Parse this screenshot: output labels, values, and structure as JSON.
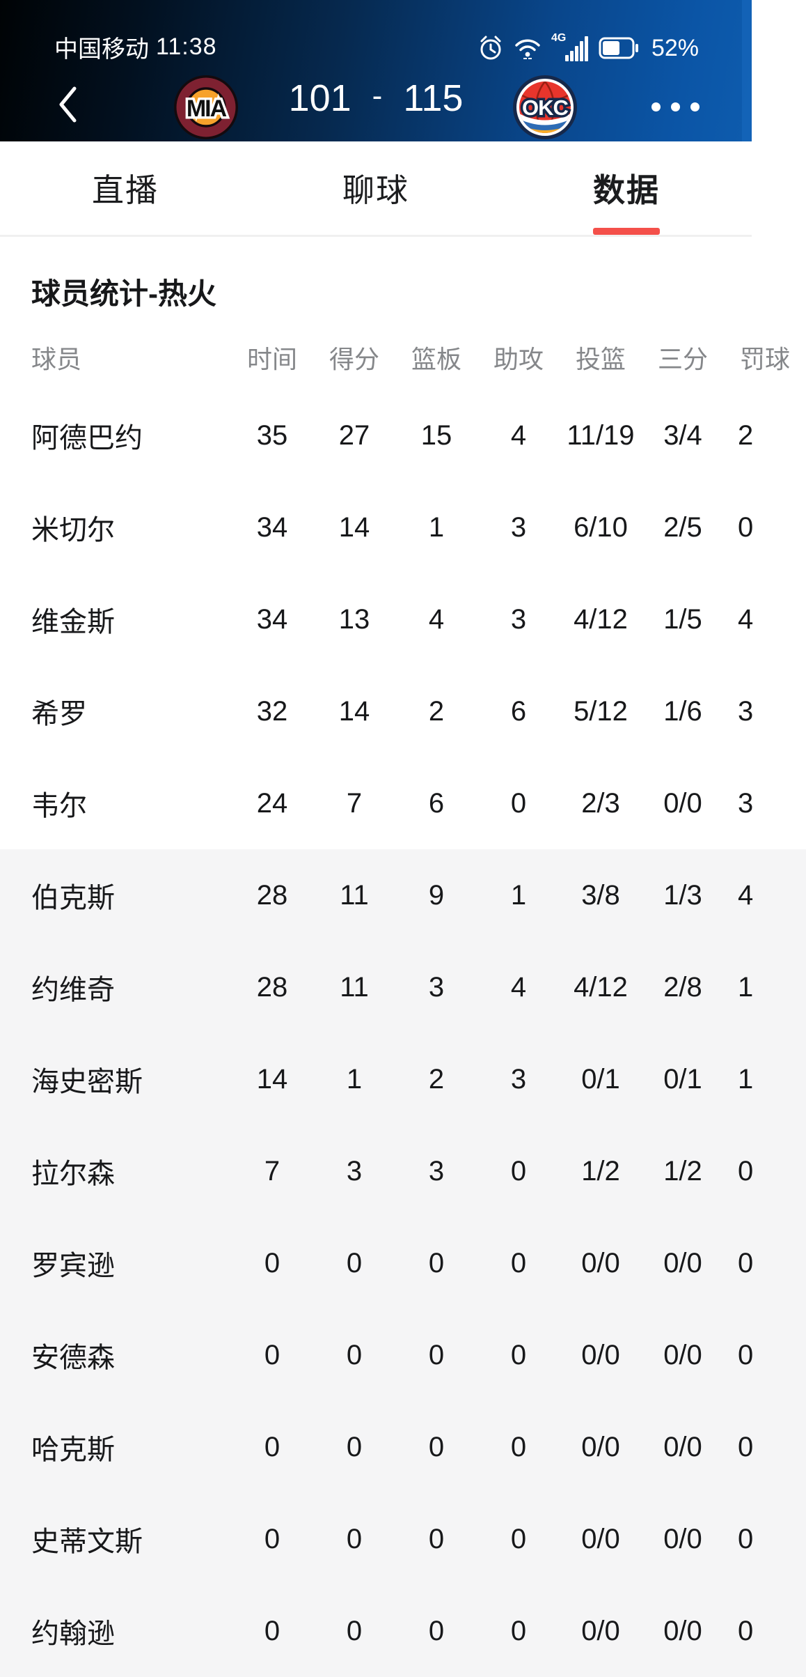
{
  "status_bar": {
    "carrier": "中国移动",
    "time": "11:38",
    "network": "4G",
    "battery_percent": "52%",
    "icons": [
      "alarm-icon",
      "wifi-icon",
      "signal-bars-icon",
      "battery-icon"
    ]
  },
  "nav": {
    "home_team_abbr": "MIA",
    "away_team_abbr": "OKC",
    "home_score": "101",
    "score_separator": "-",
    "away_score": "115",
    "back_icon": "chevron-left-icon",
    "more_icon": "ellipsis-icon"
  },
  "tabs": [
    {
      "label": "直播",
      "active": false
    },
    {
      "label": "聊球",
      "active": false
    },
    {
      "label": "数据",
      "active": true
    }
  ],
  "section": {
    "title": "球员统计-热火"
  },
  "table": {
    "columns": [
      "球员",
      "时间",
      "得分",
      "篮板",
      "助攻",
      "投篮",
      "三分",
      "罚球"
    ],
    "rows": [
      {
        "name": "阿德巴约",
        "stats": [
          "35",
          "27",
          "15",
          "4",
          "11/19",
          "3/4"
        ],
        "ft_visible": "2",
        "bench": false
      },
      {
        "name": "米切尔",
        "stats": [
          "34",
          "14",
          "1",
          "3",
          "6/10",
          "2/5"
        ],
        "ft_visible": "0",
        "bench": false
      },
      {
        "name": "维金斯",
        "stats": [
          "34",
          "13",
          "4",
          "3",
          "4/12",
          "1/5"
        ],
        "ft_visible": "4",
        "bench": false
      },
      {
        "name": "希罗",
        "stats": [
          "32",
          "14",
          "2",
          "6",
          "5/12",
          "1/6"
        ],
        "ft_visible": "3",
        "bench": false
      },
      {
        "name": "韦尔",
        "stats": [
          "24",
          "7",
          "6",
          "0",
          "2/3",
          "0/0"
        ],
        "ft_visible": "3",
        "bench": false
      },
      {
        "name": "伯克斯",
        "stats": [
          "28",
          "11",
          "9",
          "1",
          "3/8",
          "1/3"
        ],
        "ft_visible": "4",
        "bench": true
      },
      {
        "name": "约维奇",
        "stats": [
          "28",
          "11",
          "3",
          "4",
          "4/12",
          "2/8"
        ],
        "ft_visible": "1",
        "bench": true
      },
      {
        "name": "海史密斯",
        "stats": [
          "14",
          "1",
          "2",
          "3",
          "0/1",
          "0/1"
        ],
        "ft_visible": "1",
        "bench": true
      },
      {
        "name": "拉尔森",
        "stats": [
          "7",
          "3",
          "3",
          "0",
          "1/2",
          "1/2"
        ],
        "ft_visible": "0",
        "bench": true
      },
      {
        "name": "罗宾逊",
        "stats": [
          "0",
          "0",
          "0",
          "0",
          "0/0",
          "0/0"
        ],
        "ft_visible": "0",
        "bench": true
      },
      {
        "name": "安德森",
        "stats": [
          "0",
          "0",
          "0",
          "0",
          "0/0",
          "0/0"
        ],
        "ft_visible": "0",
        "bench": true
      },
      {
        "name": "哈克斯",
        "stats": [
          "0",
          "0",
          "0",
          "0",
          "0/0",
          "0/0"
        ],
        "ft_visible": "0",
        "bench": true
      },
      {
        "name": "史蒂文斯",
        "stats": [
          "0",
          "0",
          "0",
          "0",
          "0/0",
          "0/0"
        ],
        "ft_visible": "0",
        "bench": true
      },
      {
        "name": "约翰逊",
        "stats": [
          "0",
          "0",
          "0",
          "0",
          "0/0",
          "0/0"
        ],
        "ft_visible": "0",
        "bench": true
      }
    ]
  },
  "colors": {
    "accent_underline": "#f4504a",
    "bench_row_bg": "#f5f5f6",
    "header_text": "#85878a",
    "cell_text": "#17181a",
    "header_blue_right": "#0b55a6",
    "mia_maroon": "#7e2131",
    "mia_orange": "#f7a22b",
    "okc_navy": "#16284a",
    "okc_red": "#e8352c",
    "okc_blue": "#2e6cb5",
    "okc_yellow": "#f8ac28"
  }
}
